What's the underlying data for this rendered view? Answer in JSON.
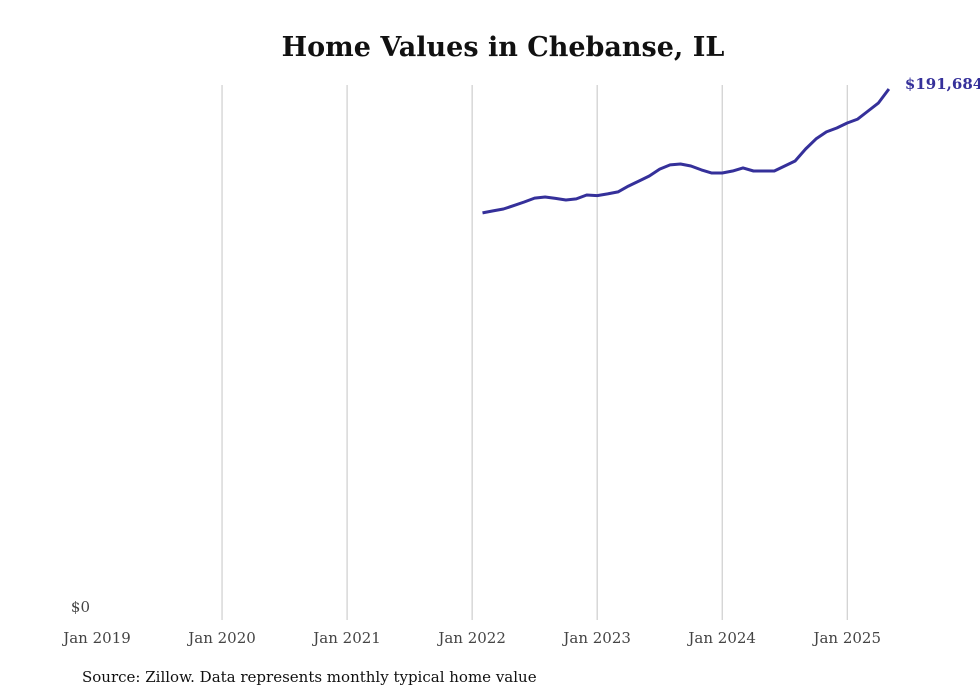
{
  "chart_data": {
    "type": "line",
    "title": "Home Values in Chebanse, IL",
    "xlabel": "",
    "ylabel": "",
    "source": "Source: Zillow. Data represents monthly typical home value",
    "y_tick_labels": [
      "$0"
    ],
    "ylim": [
      0,
      191684
    ],
    "x_tick_labels": [
      "Jan 2019",
      "Jan 2020",
      "Jan 2021",
      "Jan 2022",
      "Jan 2023",
      "Jan 2024",
      "Jan 2025"
    ],
    "grid": "vertical",
    "color": "#35309a",
    "last_value_label": "$191,684",
    "series": [
      {
        "name": "Typical home value",
        "start": "Feb 2022",
        "end": "May 2025",
        "values": [
          147300,
          148000,
          148700,
          149900,
          151200,
          152600,
          153000,
          152500,
          151900,
          152300,
          153700,
          153500,
          154100,
          154800,
          156900,
          158700,
          160500,
          163000,
          164500,
          164800,
          164100,
          162700,
          161600,
          161600,
          162300,
          163400,
          162300,
          162300,
          162300,
          164100,
          165900,
          170200,
          173800,
          176300,
          177700,
          179500,
          180900,
          183800,
          186700,
          191684
        ]
      }
    ]
  }
}
